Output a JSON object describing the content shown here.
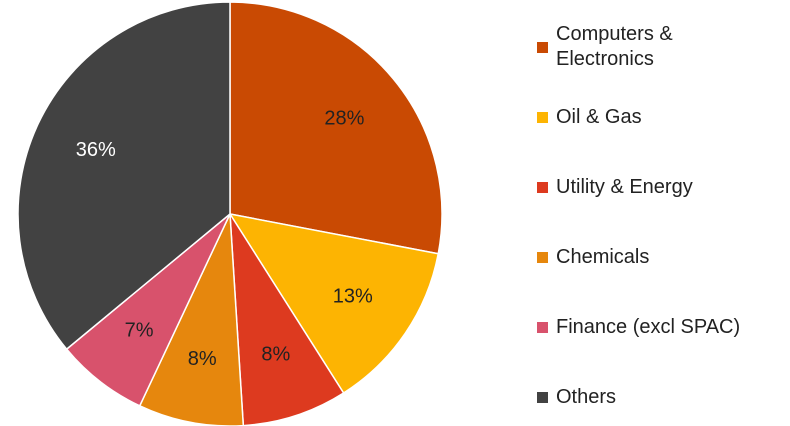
{
  "chart_data": {
    "type": "pie",
    "categories": [
      "Computers & Electronics",
      "Oil & Gas",
      "Utility & Energy",
      "Chemicals",
      "Finance (excl SPAC)",
      "Others"
    ],
    "values": [
      28,
      13,
      8,
      8,
      7,
      36
    ],
    "value_labels": [
      "28%",
      "13%",
      "8%",
      "8%",
      "7%",
      "36%"
    ],
    "colors": [
      "#c94a03",
      "#fdb402",
      "#dd3a1f",
      "#e6870d",
      "#d8526c",
      "#424242"
    ],
    "start_angle": 0,
    "direction": "clockwise",
    "legend": "right"
  }
}
